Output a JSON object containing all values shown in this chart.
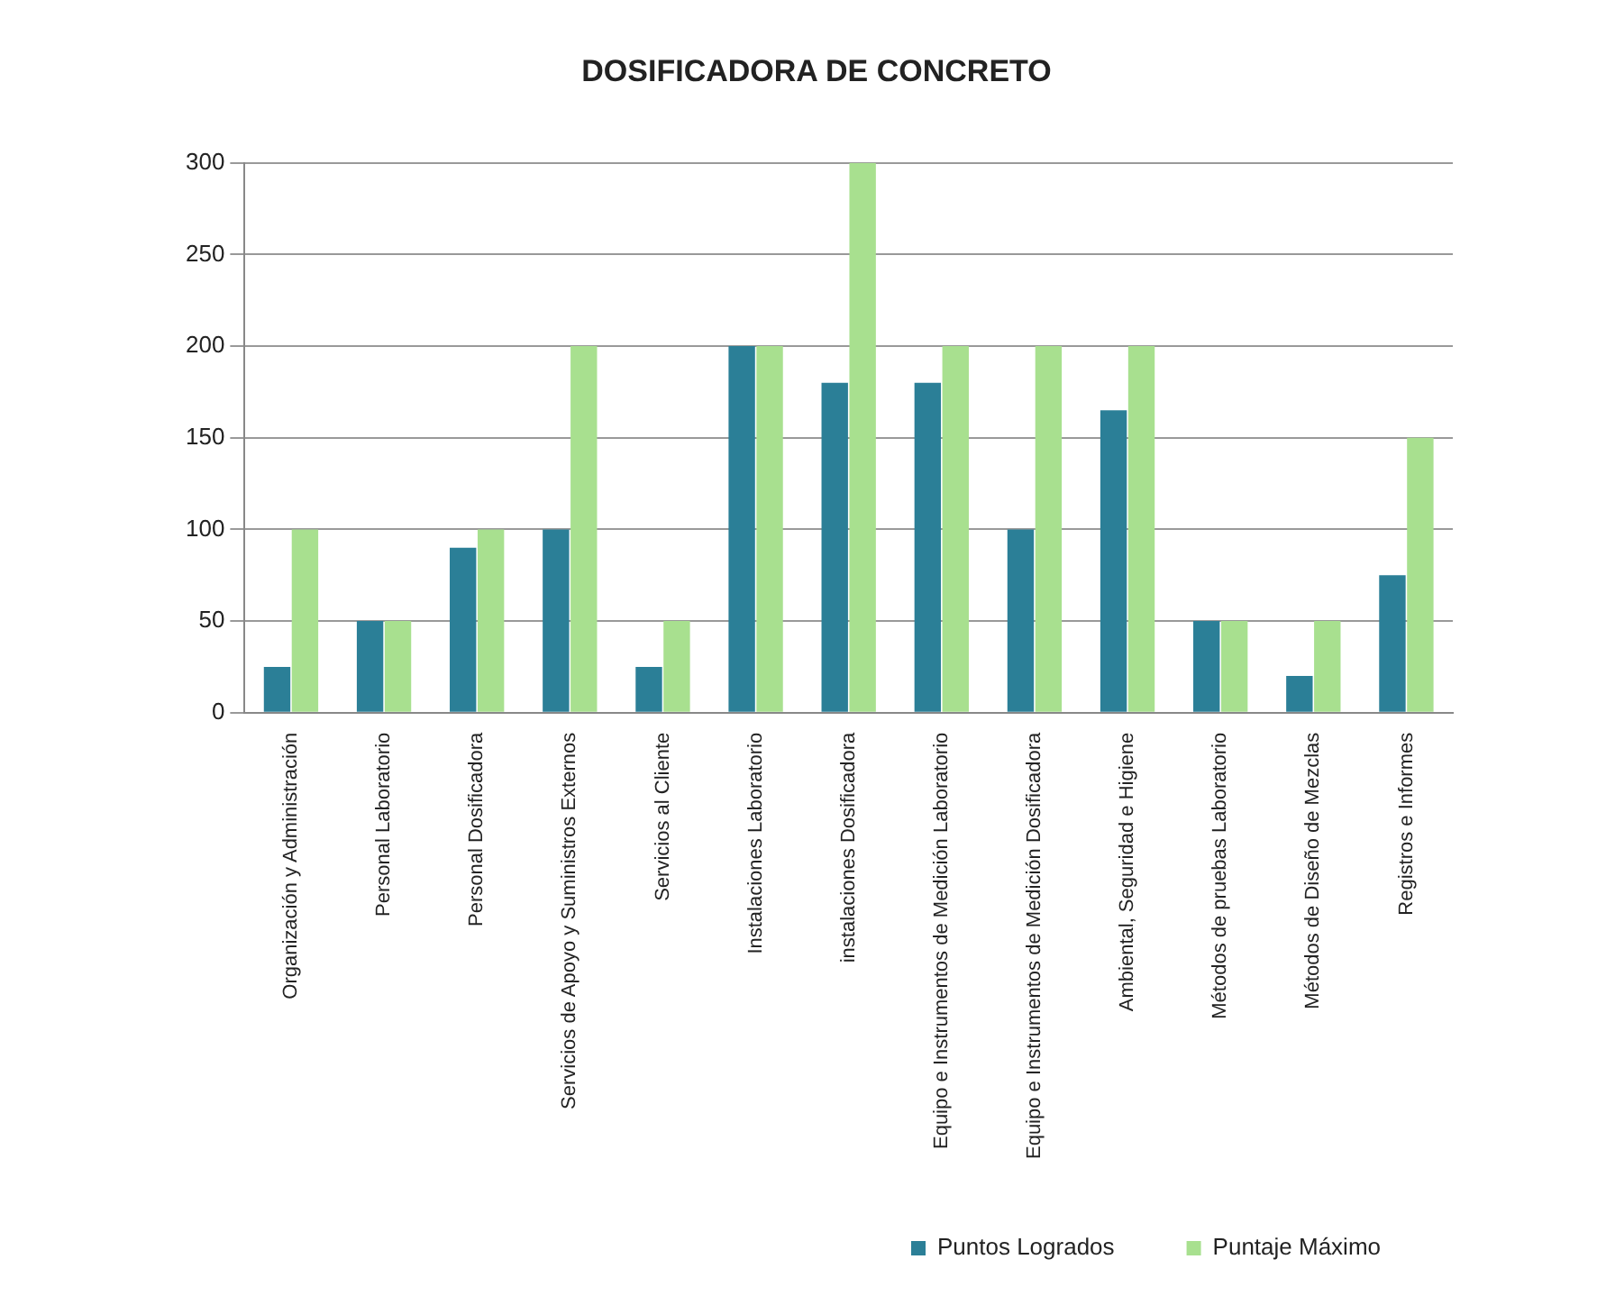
{
  "chart_data": {
    "type": "bar",
    "title": "DOSIFICADORA DE CONCRETO",
    "categories": [
      "Organización y Administración",
      "Personal Laboratorio",
      "Personal Dosificadora",
      "Servicios de Apoyo y Suministros Externos",
      "Servicios al Cliente",
      "Instalaciones Laboratorio",
      "instalaciones Dosificadora",
      "Equipo e Instrumentos de Medición Laboratorio",
      "Equipo e Instrumentos de Medición Dosificadora",
      "Ambiental, Seguridad e Higiene",
      "Métodos de pruebas Laboratorio",
      "Métodos de Diseño de Mezclas",
      "Registros e Informes"
    ],
    "series": [
      {
        "name": "Puntos Logrados",
        "color": "#2b7f97",
        "values": [
          25,
          50,
          90,
          100,
          25,
          200,
          180,
          180,
          100,
          165,
          50,
          20,
          75
        ]
      },
      {
        "name": "Puntaje Máximo",
        "color": "#a8e08f",
        "values": [
          100,
          50,
          100,
          200,
          50,
          200,
          300,
          200,
          200,
          200,
          50,
          50,
          150
        ]
      }
    ],
    "ylim": [
      0,
      300
    ],
    "yticks": [
      0,
      50,
      100,
      150,
      200,
      250,
      300
    ],
    "grid": "y",
    "legend": "bottom right"
  }
}
